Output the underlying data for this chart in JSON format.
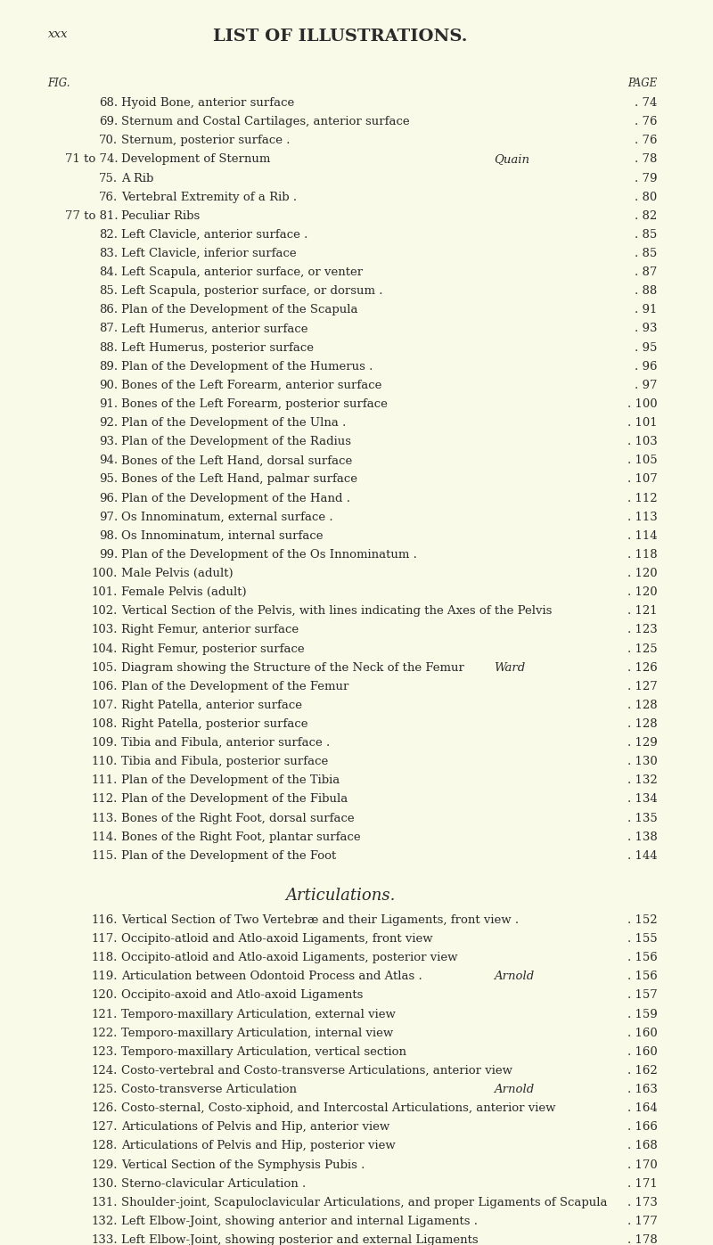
{
  "background_color": "#FAFAE8",
  "header_left": "xxx",
  "header_center": "LIST OF ILLUSTRATIONS.",
  "col_fig": "FIG.",
  "col_page": "PAGE",
  "entries": [
    {
      "fig": "68.",
      "text": "Hyoid Bone, anterior surface",
      "author": "",
      "page": "74"
    },
    {
      "fig": "69.",
      "text": "Sternum and Costal Cartilages, anterior surface",
      "author": "",
      "page": "76"
    },
    {
      "fig": "70.",
      "text": "Sternum, posterior surface .",
      "author": "",
      "page": "76"
    },
    {
      "fig": "71 to 74.",
      "text": "Development of Sternum",
      "author": "Quain",
      "page": "78"
    },
    {
      "fig": "75.",
      "text": "A Rib",
      "author": "",
      "page": "79"
    },
    {
      "fig": "76.",
      "text": "Vertebral Extremity of a Rib .",
      "author": "",
      "page": "80"
    },
    {
      "fig": "77 to 81.",
      "text": "Peculiar Ribs",
      "author": "",
      "page": "82"
    },
    {
      "fig": "82.",
      "text": "Left Clavicle, anterior surface .",
      "author": "",
      "page": "85"
    },
    {
      "fig": "83.",
      "text": "Left Clavicle, inferior surface",
      "author": "",
      "page": "85"
    },
    {
      "fig": "84.",
      "text": "Left Scapula, anterior surface, or venter",
      "author": "",
      "page": "87"
    },
    {
      "fig": "85.",
      "text": "Left Scapula, posterior surface, or dorsum .",
      "author": "",
      "page": "88"
    },
    {
      "fig": "86.",
      "text": "Plan of the Development of the Scapula",
      "author": "",
      "page": "91"
    },
    {
      "fig": "87.",
      "text": "Left Humerus, anterior surface",
      "author": "",
      "page": "93"
    },
    {
      "fig": "88.",
      "text": "Left Humerus, posterior surface",
      "author": "",
      "page": "95"
    },
    {
      "fig": "89.",
      "text": "Plan of the Development of the Humerus .",
      "author": "",
      "page": "96"
    },
    {
      "fig": "90.",
      "text": "Bones of the Left Forearm, anterior surface",
      "author": "",
      "page": "97"
    },
    {
      "fig": "91.",
      "text": "Bones of the Left Forearm, posterior surface",
      "author": "",
      "page": "100"
    },
    {
      "fig": "92.",
      "text": "Plan of the Development of the Ulna .",
      "author": "",
      "page": "101"
    },
    {
      "fig": "93.",
      "text": "Plan of the Development of the Radius",
      "author": "",
      "page": "103"
    },
    {
      "fig": "94.",
      "text": "Bones of the Left Hand, dorsal surface",
      "author": "",
      "page": "105"
    },
    {
      "fig": "95.",
      "text": "Bones of the Left Hand, palmar surface",
      "author": "",
      "page": "107"
    },
    {
      "fig": "96.",
      "text": "Plan of the Development of the Hand .",
      "author": "",
      "page": "112"
    },
    {
      "fig": "97.",
      "text": "Os Innominatum, external surface .",
      "author": "",
      "page": "113"
    },
    {
      "fig": "98.",
      "text": "Os Innominatum, internal surface",
      "author": "",
      "page": "114"
    },
    {
      "fig": "99.",
      "text": "Plan of the Development of the Os Innominatum .",
      "author": "",
      "page": "118"
    },
    {
      "fig": "100.",
      "text": "Male Pelvis (adult)",
      "author": "",
      "page": "120"
    },
    {
      "fig": "101.",
      "text": "Female Pelvis (adult)",
      "author": "",
      "page": "120"
    },
    {
      "fig": "102.",
      "text": "Vertical Section of the Pelvis, with lines indicating the Axes of the Pelvis",
      "author": "",
      "page": "121"
    },
    {
      "fig": "103.",
      "text": "Right Femur, anterior surface",
      "author": "",
      "page": "123"
    },
    {
      "fig": "104.",
      "text": "Right Femur, posterior surface",
      "author": "",
      "page": "125"
    },
    {
      "fig": "105.",
      "text": "Diagram showing the Structure of the Neck of the Femur",
      "author": "Ward",
      "page": "126"
    },
    {
      "fig": "106.",
      "text": "Plan of the Development of the Femur",
      "author": "",
      "page": "127"
    },
    {
      "fig": "107.",
      "text": "Right Patella, anterior surface",
      "author": "",
      "page": "128"
    },
    {
      "fig": "108.",
      "text": "Right Patella, posterior surface",
      "author": "",
      "page": "128"
    },
    {
      "fig": "109.",
      "text": "Tibia and Fibula, anterior surface .",
      "author": "",
      "page": "129"
    },
    {
      "fig": "110.",
      "text": "Tibia and Fibula, posterior surface",
      "author": "",
      "page": "130"
    },
    {
      "fig": "111.",
      "text": "Plan of the Development of the Tibia",
      "author": "",
      "page": "132"
    },
    {
      "fig": "112.",
      "text": "Plan of the Development of the Fibula",
      "author": "",
      "page": "134"
    },
    {
      "fig": "113.",
      "text": "Bones of the Right Foot, dorsal surface",
      "author": "",
      "page": "135"
    },
    {
      "fig": "114.",
      "text": "Bones of the Right Foot, plantar surface",
      "author": "",
      "page": "138"
    },
    {
      "fig": "115.",
      "text": "Plan of the Development of the Foot",
      "author": "",
      "page": "144"
    }
  ],
  "section_title": "Articulations.",
  "section_entries": [
    {
      "fig": "116.",
      "text": "Vertical Section of Two Vertebræ and their Ligaments, front view .",
      "author": "",
      "page": "152"
    },
    {
      "fig": "117.",
      "text": "Occipito-atloid and Atlo-axoid Ligaments, front view",
      "author": "",
      "page": "155"
    },
    {
      "fig": "118.",
      "text": "Occipito-atloid and Atlo-axoid Ligaments, posterior view",
      "author": "",
      "page": "156"
    },
    {
      "fig": "119.",
      "text": "Articulation between Odontoid Process and Atlas .",
      "author": "Arnold",
      "page": "156"
    },
    {
      "fig": "120.",
      "text": "Occipito-axoid and Atlo-axoid Ligaments",
      "author": "",
      "page": "157"
    },
    {
      "fig": "121.",
      "text": "Temporo-maxillary Articulation, external view",
      "author": "",
      "page": "159"
    },
    {
      "fig": "122.",
      "text": "Temporo-maxillary Articulation, internal view",
      "author": "",
      "page": "160"
    },
    {
      "fig": "123.",
      "text": "Temporo-maxillary Articulation, vertical section",
      "author": "",
      "page": "160"
    },
    {
      "fig": "124.",
      "text": "Costo-vertebral and Costo-transverse Articulations, anterior view",
      "author": "",
      "page": "162"
    },
    {
      "fig": "125.",
      "text": "Costo-transverse Articulation",
      "author": "Arnold",
      "page": "163"
    },
    {
      "fig": "126.",
      "text": "Costo-sternal, Costo-xiphoid, and Intercostal Articulations, anterior view",
      "author": "",
      "page": "164"
    },
    {
      "fig": "127.",
      "text": "Articulations of Pelvis and Hip, anterior view",
      "author": "",
      "page": "166"
    },
    {
      "fig": "128.",
      "text": "Articulations of Pelvis and Hip, posterior view",
      "author": "",
      "page": "168"
    },
    {
      "fig": "129.",
      "text": "Vertical Section of the Symphysis Pubis .",
      "author": "",
      "page": "170"
    },
    {
      "fig": "130.",
      "text": "Sterno-clavicular Articulation .",
      "author": "",
      "page": "171"
    },
    {
      "fig": "131.",
      "text": "Shoulder-joint, Scapuloclavicular Articulations, and proper Ligaments of Scapula",
      "author": "",
      "page": "173"
    },
    {
      "fig": "132.",
      "text": "Left Elbow-Joint, showing anterior and internal Ligaments .",
      "author": "",
      "page": "177"
    },
    {
      "fig": "133.",
      "text": "Left Elbow-Joint, showing posterior and external Ligaments",
      "author": "",
      "page": "178"
    }
  ],
  "text_color": "#2a2a2a",
  "font_size": 9.5,
  "header_fontsize": 14,
  "section_fontsize": 13
}
